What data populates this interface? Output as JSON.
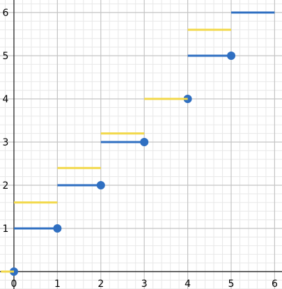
{
  "chart_data": {
    "type": "line",
    "title": "",
    "xlabel": "",
    "ylabel": "",
    "xlim": [
      0,
      6
    ],
    "ylim": [
      0,
      6
    ],
    "grid": true,
    "minor_grid_divisions": 5,
    "x_ticks": [
      "0",
      "1",
      "2",
      "3",
      "4",
      "5",
      "6"
    ],
    "y_ticks": [
      "1",
      "2",
      "3",
      "4",
      "5",
      "6"
    ],
    "series": [
      {
        "color": "#2f6fc1",
        "style": "step-segments-closed-left",
        "segments": [
          {
            "x0": 0,
            "x1": 1,
            "y": 1
          },
          {
            "x0": 1,
            "x1": 2,
            "y": 2
          },
          {
            "x0": 2,
            "x1": 3,
            "y": 3
          },
          {
            "x0": 4,
            "x1": 5,
            "y": 5
          },
          {
            "x0": 5,
            "x1": 6,
            "y": 6
          }
        ],
        "points": [
          {
            "x": 0,
            "y": 0
          },
          {
            "x": 1,
            "y": 1
          },
          {
            "x": 2,
            "y": 2
          },
          {
            "x": 3,
            "y": 3
          },
          {
            "x": 4,
            "y": 4
          },
          {
            "x": 5,
            "y": 5
          }
        ]
      },
      {
        "color": "#f2d84a",
        "style": "step-segments",
        "segments": [
          {
            "x0": -0.3,
            "x1": 0,
            "y": 0
          },
          {
            "x0": 0,
            "x1": 1,
            "y": 1.6
          },
          {
            "x0": 1,
            "x1": 2,
            "y": 2.4
          },
          {
            "x0": 2,
            "x1": 3,
            "y": 3.2
          },
          {
            "x0": 3,
            "x1": 4,
            "y": 4
          },
          {
            "x0": 4,
            "x1": 5,
            "y": 5.6
          }
        ]
      }
    ]
  }
}
